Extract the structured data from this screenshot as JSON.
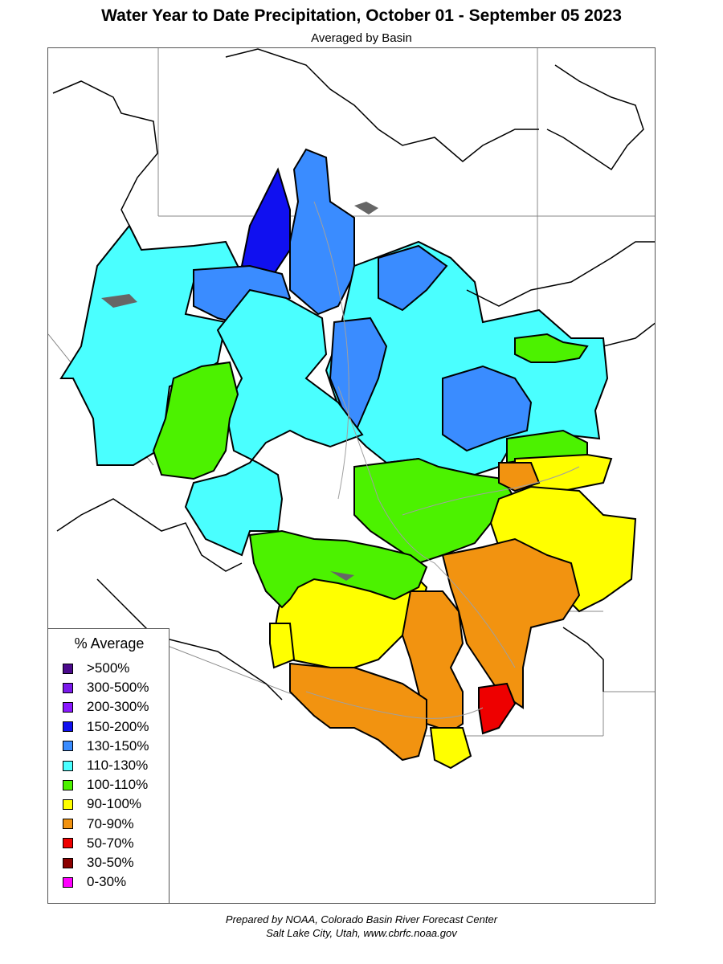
{
  "title": "Water Year to Date Precipitation, October 01  - September 05 2023",
  "subtitle": "Averaged by Basin",
  "legend": {
    "title": "% Average",
    "items": [
      {
        "label": ">500%",
        "color": "#4b0a8c"
      },
      {
        "label": "300-500%",
        "color": "#7a1aeb"
      },
      {
        "label": "200-300%",
        "color": "#8a1aff"
      },
      {
        "label": "150-200%",
        "color": "#1010f0"
      },
      {
        "label": "130-150%",
        "color": "#3a8cff"
      },
      {
        "label": "110-130%",
        "color": "#4affff"
      },
      {
        "label": "100-110%",
        "color": "#4cf200"
      },
      {
        "label": "90-100%",
        "color": "#ffff00"
      },
      {
        "label": "70-90%",
        "color": "#f29310"
      },
      {
        "label": "50-70%",
        "color": "#ee0000"
      },
      {
        "label": "30-50%",
        "color": "#8b0000"
      },
      {
        "label": "0-30%",
        "color": "#ff00ff"
      }
    ]
  },
  "footer": {
    "line1": "Prepared by NOAA, Colorado Basin River Forecast Center",
    "line2": "Salt Lake City, Utah, www.cbrfc.noaa.gov"
  },
  "map": {
    "colors": {
      "basin_outline": "#000000",
      "state_line": "#888888",
      "river": "#a0a0a0",
      "lake": "#666666",
      "background": "#ffffff"
    }
  }
}
